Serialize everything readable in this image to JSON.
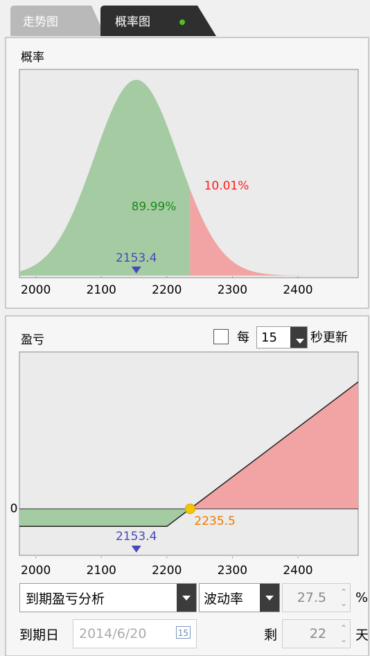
{
  "tabs": [
    "走势图",
    "概率图"
  ],
  "chart_data": [
    {
      "type": "probability",
      "title": "概率",
      "xlim": [
        1975,
        2492
      ],
      "xticks": [
        2000,
        2100,
        2200,
        2300,
        2400
      ],
      "marker": 2153.4,
      "threshold": 2235.5,
      "values": [
        89.99,
        10.01
      ],
      "value_labels": [
        "89.99%",
        "10.01%"
      ],
      "colors": [
        "#a5cba3",
        "#f2a3a3"
      ],
      "label_colors": [
        "#1c8a1c",
        "#ff1a1a"
      ],
      "marker_color": "#4848b8"
    },
    {
      "type": "payoff",
      "title": "盈亏",
      "xlim": [
        1975,
        2492
      ],
      "xticks": [
        2000,
        2100,
        2200,
        2300,
        2400
      ],
      "ylim": [
        -94,
        317
      ],
      "yticks": [
        0
      ],
      "x": [
        1975,
        2200,
        2235.5,
        2492
      ],
      "values": [
        -35.5,
        -35.5,
        0,
        256.5
      ],
      "marker": 2153.4,
      "colors": [
        "#a5cba3",
        "#f2a3a3"
      ],
      "line_color": "#222222",
      "point_color": "#f5c400",
      "label_color": "#f07800",
      "marker_color": "#4848b8"
    }
  ],
  "controls": {
    "refresh_prefix": "每",
    "refresh_interval": "15",
    "refresh_suffix": "秒更新",
    "analysis": "到期盈亏分析",
    "param": "波动率",
    "param_value": "27.5",
    "param_unit": "%",
    "expiry_label": "到期日",
    "expiry": "2014/6/20",
    "calendar": "15",
    "remaining_label": "剩",
    "remaining": "22",
    "remaining_unit": "天"
  }
}
